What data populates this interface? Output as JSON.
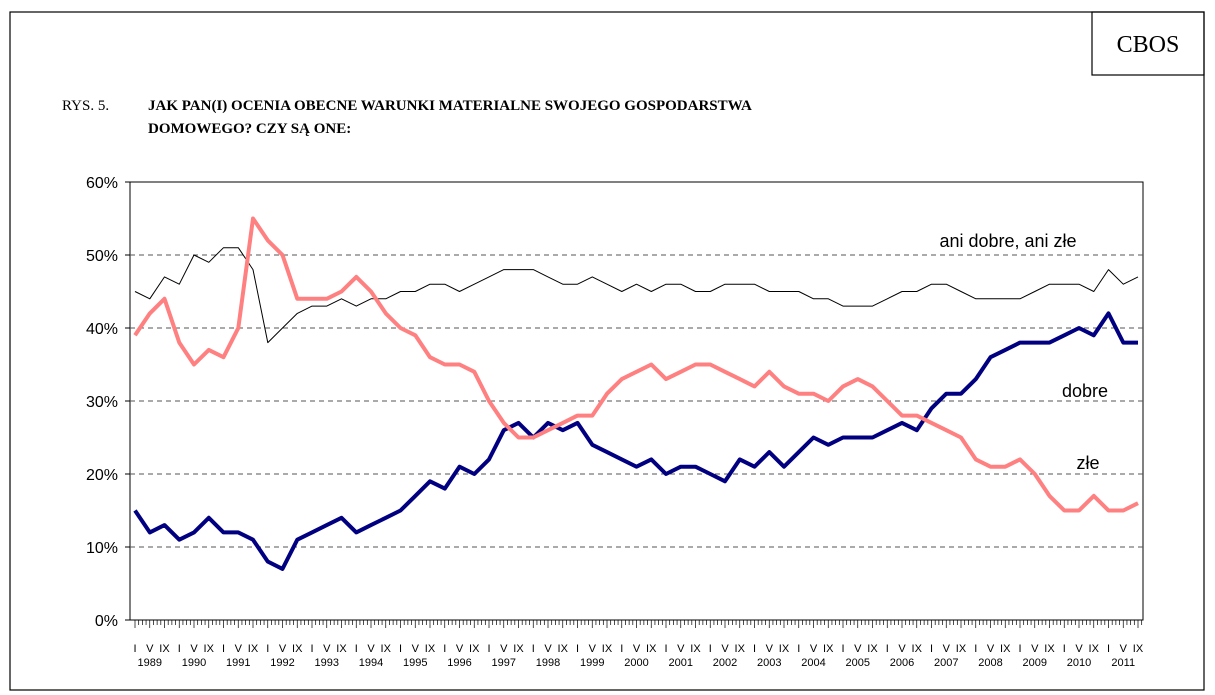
{
  "source": "CBOS",
  "figure_label": "RYS. 5.",
  "title_lines": [
    "JAK PAN(I) OCENIA OBECNE WARUNKI MATERIALNE SWOJEGO GOSPODARSTWA",
    "DOMOWEGO? CZY SĄ ONE:"
  ],
  "chart_data": {
    "type": "line",
    "categories": [
      "I",
      "V",
      "IX",
      "I",
      "V",
      "IX",
      "I",
      "V",
      "IX",
      "I",
      "V",
      "IX",
      "I",
      "V",
      "IX",
      "I",
      "V",
      "IX",
      "I",
      "V",
      "IX",
      "I",
      "V",
      "IX",
      "I",
      "V",
      "IX",
      "I",
      "V",
      "IX",
      "I",
      "V",
      "IX",
      "I",
      "V",
      "IX",
      "I",
      "V",
      "IX",
      "I",
      "V",
      "IX",
      "I",
      "V",
      "IX",
      "I",
      "V",
      "IX",
      "I",
      "V",
      "IX",
      "I",
      "V",
      "IX",
      "I",
      "V",
      "IX",
      "I",
      "V",
      "IX",
      "I",
      "V",
      "IX",
      "I",
      "V",
      "IX",
      "I",
      "V",
      "IX"
    ],
    "years": [
      "1989",
      "1990",
      "1991",
      "1992",
      "1993",
      "1994",
      "1995",
      "1996",
      "1997",
      "1998",
      "1999",
      "2000",
      "2001",
      "2002",
      "2003",
      "2004",
      "2005",
      "2006",
      "2007",
      "2008",
      "2009",
      "2010",
      "2011"
    ],
    "ylim": [
      0,
      60
    ],
    "yticks": [
      {
        "value": 0,
        "label": "0%"
      },
      {
        "value": 10,
        "label": "10%"
      },
      {
        "value": 20,
        "label": "20%"
      },
      {
        "value": 30,
        "label": "30%"
      },
      {
        "value": 40,
        "label": "40%"
      },
      {
        "value": 50,
        "label": "50%"
      },
      {
        "value": 60,
        "label": "60%"
      }
    ],
    "grid": true,
    "series": [
      {
        "name": "ani dobre, ani złe",
        "color": "#000000",
        "width": 1,
        "values": [
          45,
          44,
          47,
          46,
          50,
          49,
          51,
          51,
          48,
          38,
          40,
          42,
          43,
          43,
          44,
          43,
          44,
          44,
          45,
          45,
          46,
          46,
          45,
          46,
          47,
          48,
          48,
          48,
          47,
          46,
          46,
          47,
          46,
          45,
          46,
          45,
          46,
          46,
          45,
          45,
          46,
          46,
          46,
          45,
          45,
          45,
          44,
          44,
          43,
          43,
          43,
          44,
          45,
          45,
          46,
          46,
          45,
          44,
          44,
          44,
          44,
          45,
          46,
          46,
          46,
          45,
          48,
          46,
          47
        ]
      },
      {
        "name": "dobre",
        "color": "#000080",
        "width": 4,
        "values": [
          15,
          12,
          13,
          11,
          12,
          14,
          12,
          12,
          11,
          8,
          7,
          11,
          12,
          13,
          14,
          12,
          13,
          14,
          15,
          17,
          19,
          18,
          21,
          20,
          22,
          26,
          27,
          25,
          27,
          26,
          27,
          24,
          23,
          22,
          21,
          22,
          20,
          21,
          21,
          20,
          19,
          22,
          21,
          23,
          21,
          23,
          25,
          24,
          25,
          25,
          25,
          26,
          27,
          26,
          29,
          31,
          31,
          33,
          36,
          37,
          38,
          38,
          38,
          39,
          40,
          39,
          42,
          38,
          38
        ]
      },
      {
        "name": "złe",
        "color": "#ff8080",
        "width": 4,
        "values": [
          39,
          42,
          44,
          38,
          35,
          37,
          36,
          40,
          55,
          52,
          50,
          44,
          44,
          44,
          45,
          47,
          45,
          42,
          40,
          39,
          36,
          35,
          35,
          34,
          30,
          27,
          25,
          25,
          26,
          27,
          28,
          28,
          31,
          33,
          34,
          35,
          33,
          34,
          35,
          35,
          34,
          33,
          32,
          34,
          32,
          31,
          31,
          30,
          32,
          33,
          32,
          30,
          28,
          28,
          27,
          26,
          25,
          22,
          21,
          21,
          22,
          20,
          17,
          15,
          15,
          17,
          15,
          15,
          16
        ]
      }
    ]
  }
}
